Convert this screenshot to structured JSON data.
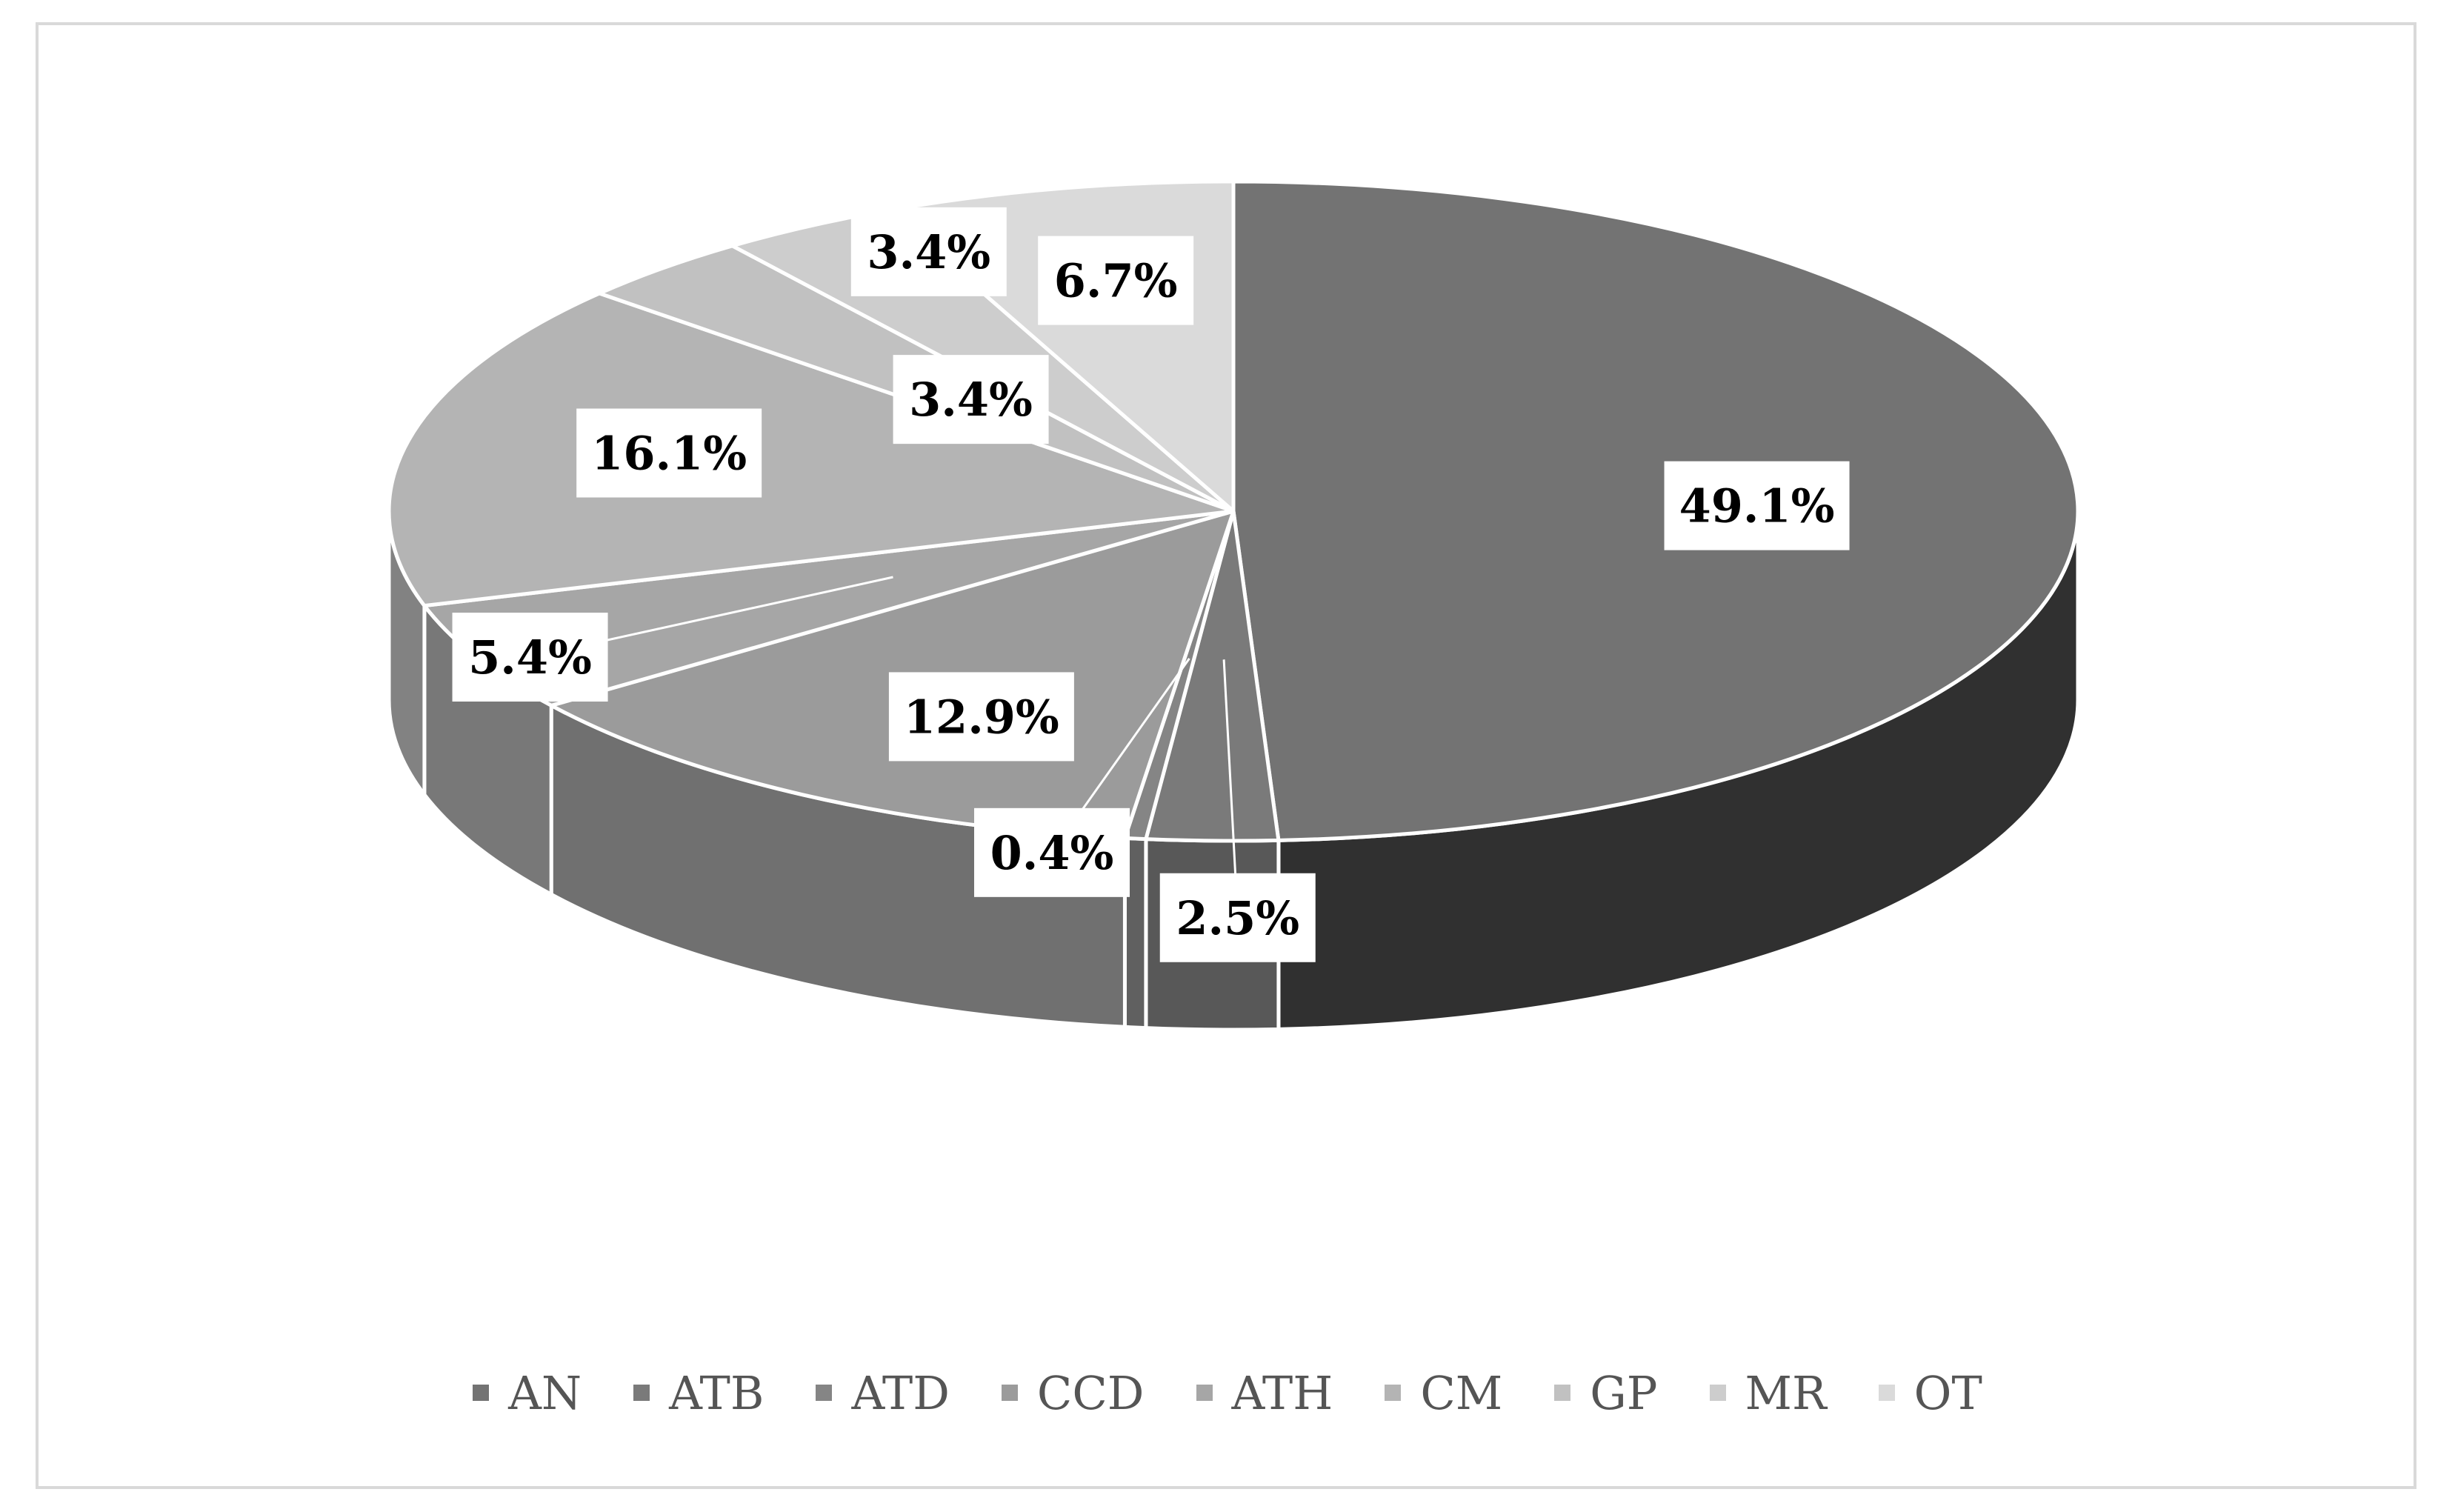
{
  "chart_data": {
    "type": "pie",
    "title": "",
    "style": "3d",
    "legend_position": "bottom",
    "categories": [
      "AN",
      "ATB",
      "ATD",
      "CCD",
      "ATH",
      "CM",
      "GP",
      "MR",
      "OT"
    ],
    "values": [
      49.1,
      2.5,
      0.4,
      12.9,
      5.4,
      16.1,
      3.4,
      3.4,
      6.7
    ],
    "labels": [
      "49.1%",
      "2.5%",
      "0.4%",
      "12.9%",
      "5.4%",
      "16.1%",
      "3.4%",
      "3.4%",
      "6.7%"
    ],
    "colors": [
      "#737373",
      "#7a7a7a",
      "#858585",
      "#9b9b9b",
      "#a6a6a6",
      "#b4b4b4",
      "#c1c1c1",
      "#cdcdcd",
      "#dadada"
    ]
  }
}
